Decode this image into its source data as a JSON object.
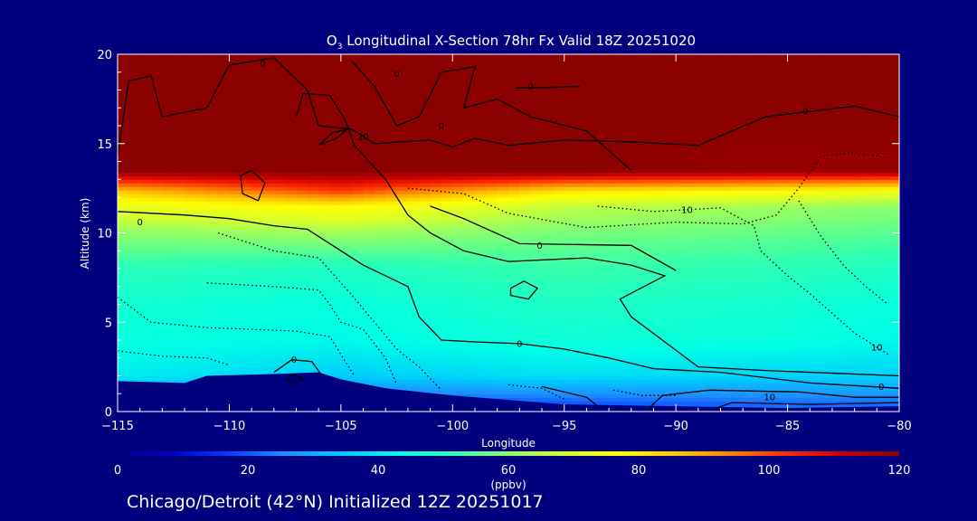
{
  "colors": {
    "background": "#00007f",
    "axis": "#ffffff",
    "contour": "#000000",
    "colormap": [
      "#00007f",
      "#0000c8",
      "#0a3cff",
      "#1e90ff",
      "#00c8ff",
      "#00ffe6",
      "#30ffb0",
      "#8cff6a",
      "#d8ff2a",
      "#ffff00",
      "#ffc800",
      "#ff8200",
      "#ff2a00",
      "#c80000",
      "#8b0000"
    ]
  },
  "chart_data": {
    "type": "heatmap",
    "title": {
      "species": "O",
      "species_sub": "3",
      "rest": " Longitudinal X-Section 78hr  Fx Valid 18Z 20251020"
    },
    "xlabel": "Longitude",
    "ylabel": "Altitude (km)",
    "xlim": [
      -115,
      -80
    ],
    "ylim": [
      0,
      20
    ],
    "xticks": [
      -115,
      -110,
      -105,
      -100,
      -95,
      -90,
      -85,
      -80
    ],
    "xticklabels": [
      "−115",
      "−110",
      "−105",
      "−100",
      "−95",
      "−90",
      "−85",
      "−80"
    ],
    "yticks": [
      0,
      5,
      10,
      15,
      20
    ],
    "yticklabels": [
      "0",
      "5",
      "10",
      "15",
      "20"
    ],
    "colorbar": {
      "range": [
        0,
        120
      ],
      "ticks": [
        0,
        20,
        40,
        60,
        80,
        100,
        120
      ],
      "ticklabels": [
        "0",
        "20",
        "40",
        "60",
        "80",
        "100",
        "120"
      ],
      "unit_label": "(ppbv)"
    },
    "terrain": [
      [
        -115,
        1.7
      ],
      [
        -112,
        1.6
      ],
      [
        -111,
        2.0
      ],
      [
        -108,
        2.1
      ],
      [
        -106,
        2.2
      ],
      [
        -105,
        1.8
      ],
      [
        -103,
        1.3
      ],
      [
        -100,
        0.9
      ],
      [
        -97,
        0.6
      ],
      [
        -95,
        0.4
      ],
      [
        -90,
        0.3
      ],
      [
        -85,
        0.2
      ],
      [
        -80,
        0.3
      ]
    ],
    "ozone_profile_ppbv": [
      [
        -115,
        [
          20,
          40,
          44,
          46,
          50,
          60,
          72,
          85,
          120,
          120,
          120
        ]
      ],
      [
        -105,
        [
          18,
          35,
          42,
          44,
          48,
          62,
          78,
          100,
          120,
          120,
          120
        ]
      ],
      [
        -95,
        [
          20,
          38,
          45,
          48,
          52,
          58,
          66,
          80,
          120,
          120,
          120
        ]
      ],
      [
        -85,
        [
          22,
          36,
          44,
          46,
          50,
          56,
          62,
          75,
          118,
          120,
          120
        ]
      ],
      [
        -80,
        [
          22,
          36,
          42,
          44,
          48,
          55,
          60,
          72,
          118,
          120,
          120
        ]
      ]
    ],
    "profile_altitudes_km": [
      0.5,
      2,
      4,
      6,
      8,
      10,
      11.5,
      12.3,
      13.5,
      16,
      20
    ],
    "contour_labels": [
      {
        "lon": -114,
        "alt": 10.6,
        "text": "0"
      },
      {
        "lon": -108.5,
        "alt": 19.5,
        "text": "0"
      },
      {
        "lon": -104,
        "alt": 15.4,
        "text": "10"
      },
      {
        "lon": -100.5,
        "alt": 16.0,
        "text": "0"
      },
      {
        "lon": -96.5,
        "alt": 18.2,
        "text": "0"
      },
      {
        "lon": -96.1,
        "alt": 9.3,
        "text": "0"
      },
      {
        "lon": -102.5,
        "alt": 18.9,
        "text": "0"
      },
      {
        "lon": -97,
        "alt": 3.8,
        "text": "0"
      },
      {
        "lon": -89.5,
        "alt": 11.3,
        "text": "10"
      },
      {
        "lon": -84.2,
        "alt": 16.8,
        "text": "0"
      },
      {
        "lon": -81,
        "alt": 3.6,
        "text": "10"
      },
      {
        "lon": -107.1,
        "alt": 2.9,
        "text": "0"
      },
      {
        "lon": -85.8,
        "alt": 0.8,
        "text": "10"
      },
      {
        "lon": -80.8,
        "alt": 1.4,
        "text": "0"
      }
    ],
    "contours_solid": [
      [
        [
          -115,
          14.3
        ],
        [
          -114.5,
          18.5
        ],
        [
          -113.5,
          18.8
        ],
        [
          -113,
          16.5
        ],
        [
          -111,
          17
        ],
        [
          -110,
          19.4
        ],
        [
          -108,
          19.8
        ],
        [
          -106.5,
          18
        ],
        [
          -106,
          16
        ],
        [
          -104.5,
          15.8
        ],
        [
          -103.5,
          15
        ],
        [
          -101,
          15.2
        ],
        [
          -100,
          14.8
        ],
        [
          -99,
          15.3
        ],
        [
          -97.5,
          14.9
        ],
        [
          -95,
          15.2
        ],
        [
          -92,
          15.1
        ],
        [
          -89,
          14.9
        ],
        [
          -86,
          16.5
        ],
        [
          -82,
          17.1
        ],
        [
          -80,
          16.5
        ]
      ],
      [
        [
          -104.5,
          19.6
        ],
        [
          -103.5,
          18.2
        ],
        [
          -102.5,
          16
        ],
        [
          -101.5,
          16.5
        ],
        [
          -100.5,
          19
        ],
        [
          -99,
          19.3
        ],
        [
          -99.5,
          17
        ],
        [
          -98,
          17.5
        ],
        [
          -96.5,
          16.5
        ],
        [
          -94,
          15.7
        ],
        [
          -92,
          13.5
        ]
      ],
      [
        [
          -107,
          16.5
        ],
        [
          -106.7,
          17.8
        ],
        [
          -105.5,
          17.7
        ],
        [
          -104.8,
          16.3
        ],
        [
          -104.4,
          14.9
        ],
        [
          -103,
          13
        ],
        [
          -102,
          11
        ],
        [
          -101,
          10
        ],
        [
          -99.5,
          9
        ],
        [
          -97.5,
          8.4
        ],
        [
          -94,
          8.6
        ],
        [
          -92,
          8.2
        ],
        [
          -90.5,
          7.6
        ],
        [
          -92.5,
          6.3
        ],
        [
          -92,
          5.3
        ],
        [
          -89,
          2.5
        ],
        [
          -86,
          2.3
        ],
        [
          -80,
          2.0
        ]
      ],
      [
        [
          -101,
          11.5
        ],
        [
          -99.5,
          10.8
        ],
        [
          -97,
          9.4
        ],
        [
          -92,
          9.3
        ],
        [
          -90,
          7.9
        ]
      ],
      [
        [
          -115,
          11.2
        ],
        [
          -112,
          11.0
        ],
        [
          -110,
          10.8
        ],
        [
          -108,
          10.4
        ],
        [
          -106.5,
          10.2
        ],
        [
          -105,
          9.0
        ],
        [
          -104,
          8.2
        ],
        [
          -102,
          7
        ],
        [
          -101.5,
          5.3
        ],
        [
          -100.5,
          4.0
        ],
        [
          -99,
          3.9
        ],
        [
          -97,
          3.8
        ],
        [
          -95,
          3.5
        ],
        [
          -93,
          3.0
        ],
        [
          -91,
          2.4
        ],
        [
          -88,
          2.2
        ],
        [
          -86,
          1.9
        ],
        [
          -84,
          1.6
        ],
        [
          -80,
          1.3
        ]
      ],
      [
        [
          -97.4,
          6.9
        ],
        [
          -96.8,
          7.3
        ],
        [
          -96.2,
          6.9
        ],
        [
          -96.6,
          6.3
        ],
        [
          -97.4,
          6.5
        ],
        [
          -97.4,
          6.9
        ]
      ],
      [
        [
          -109.5,
          13.2
        ],
        [
          -109,
          13.5
        ],
        [
          -108.4,
          12.8
        ],
        [
          -108.7,
          11.8
        ],
        [
          -109.4,
          12.2
        ],
        [
          -109.5,
          13.2
        ]
      ],
      [
        [
          -106,
          14.9
        ],
        [
          -105.2,
          15.3
        ],
        [
          -104.7,
          15.8
        ],
        [
          -105.4,
          15.6
        ],
        [
          -106,
          14.9
        ]
      ],
      [
        [
          -108,
          2.2
        ],
        [
          -107.2,
          2.9
        ],
        [
          -106.3,
          2.8
        ],
        [
          -105.9,
          2.1
        ]
      ],
      [
        [
          -107.5,
          1.7
        ],
        [
          -107.1,
          2.1
        ],
        [
          -106.7,
          1.8
        ],
        [
          -107.1,
          1.6
        ],
        [
          -107.5,
          1.7
        ]
      ],
      [
        [
          -91.2,
          0.2
        ],
        [
          -90.6,
          0.9
        ],
        [
          -88.5,
          1.2
        ],
        [
          -84.5,
          1.1
        ],
        [
          -82,
          0.8
        ],
        [
          -80,
          0.8
        ]
      ],
      [
        [
          -88.2,
          0.2
        ],
        [
          -87.5,
          0.5
        ],
        [
          -84,
          0.4
        ],
        [
          -80,
          0.5
        ]
      ],
      [
        [
          -96,
          1.4
        ],
        [
          -94,
          0.8
        ],
        [
          -93.5,
          0.3
        ]
      ],
      [
        [
          -97.2,
          18.1
        ],
        [
          -94.3,
          18.2
        ]
      ]
    ],
    "contours_dotted": [
      [
        [
          -115,
          6.4
        ],
        [
          -113.5,
          5.0
        ],
        [
          -111,
          4.7
        ],
        [
          -109,
          4.6
        ],
        [
          -107,
          4.5
        ],
        [
          -105.5,
          4.2
        ],
        [
          -104.4,
          2.0
        ]
      ],
      [
        [
          -111,
          7.2
        ],
        [
          -108,
          7.0
        ],
        [
          -106,
          6.8
        ],
        [
          -105.5,
          6.0
        ],
        [
          -105,
          5.0
        ],
        [
          -104,
          4.6
        ],
        [
          -103,
          3.0
        ],
        [
          -102.5,
          1.5
        ]
      ],
      [
        [
          -110.5,
          10.0
        ],
        [
          -108,
          9.0
        ],
        [
          -106,
          8.6
        ],
        [
          -104.5,
          6.5
        ],
        [
          -103.5,
          5.0
        ],
        [
          -102.5,
          3.5
        ],
        [
          -101.5,
          2.5
        ],
        [
          -100.5,
          1.2
        ]
      ],
      [
        [
          -102,
          12.5
        ],
        [
          -99.5,
          12.2
        ],
        [
          -97.5,
          11.1
        ],
        [
          -94,
          10.3
        ],
        [
          -90,
          10.6
        ],
        [
          -87,
          10.5
        ],
        [
          -85.5,
          11.0
        ],
        [
          -84.5,
          12.5
        ],
        [
          -83.5,
          14.3
        ],
        [
          -82,
          14.5
        ],
        [
          -80.5,
          14.2
        ]
      ],
      [
        [
          -93.5,
          11.5
        ],
        [
          -91,
          11.2
        ],
        [
          -88,
          11.4
        ],
        [
          -86.5,
          10.4
        ],
        [
          -86.2,
          9.0
        ],
        [
          -85,
          7.6
        ],
        [
          -84,
          6.6
        ],
        [
          -83,
          5.5
        ],
        [
          -82,
          4.4
        ],
        [
          -80.5,
          3.2
        ]
      ],
      [
        [
          -84.5,
          11.8
        ],
        [
          -83.5,
          9.8
        ],
        [
          -82.5,
          8.2
        ],
        [
          -81.5,
          7.0
        ],
        [
          -80.5,
          6.0
        ]
      ],
      [
        [
          -115,
          3.4
        ],
        [
          -113,
          3.1
        ],
        [
          -111,
          3.0
        ],
        [
          -110,
          2.6
        ]
      ],
      [
        [
          -97.5,
          1.5
        ],
        [
          -96,
          1.3
        ],
        [
          -95,
          0.7
        ]
      ],
      [
        [
          -92.8,
          1.2
        ],
        [
          -91.5,
          0.9
        ],
        [
          -90,
          0.9
        ]
      ]
    ]
  },
  "footer": {
    "caption": "Chicago/Detroit (42°N) Initialized 12Z 20251017"
  }
}
